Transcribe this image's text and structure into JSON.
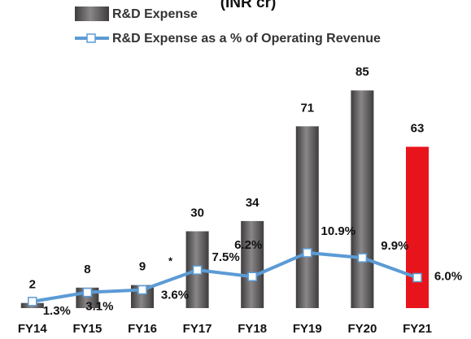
{
  "chart_data": {
    "type": "bar-line",
    "title": "(INR cr)",
    "categories": [
      "FY14",
      "FY15",
      "FY16",
      "FY17",
      "FY18",
      "FY19",
      "FY20",
      "FY21"
    ],
    "series": [
      {
        "name": "R&D Expense",
        "type": "bar",
        "color": "#5a5758",
        "colors": [
          "#5a5758",
          "#5a5758",
          "#5a5758",
          "#5a5758",
          "#5a5758",
          "#5a5758",
          "#5a5758",
          "#e8141c"
        ],
        "values": [
          2,
          8,
          9,
          30,
          34,
          71,
          85,
          63
        ]
      },
      {
        "name": "R&D Expense as a % of Operating Revenue",
        "type": "line",
        "axis": "y2",
        "color": "#5b9bd5",
        "values": [
          1.3,
          3.1,
          3.6,
          7.5,
          6.2,
          10.9,
          9.9,
          6.0
        ],
        "value_labels": [
          "1.3%",
          "3.1%",
          "3.6%",
          "7.5%",
          "6.2%",
          "10.9%",
          "9.9%",
          "6.0%"
        ]
      }
    ],
    "annotations": [
      "*"
    ],
    "ylim": [
      0,
      120
    ],
    "y2lim": [
      0,
      60.5
    ]
  }
}
